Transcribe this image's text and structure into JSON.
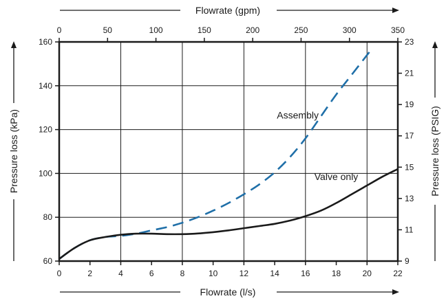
{
  "chart_data": {
    "type": "line",
    "x_bottom": {
      "label": "Flowrate (l/s)",
      "range": [
        0,
        22
      ],
      "ticks": [
        "0",
        "2",
        "4",
        "6",
        "8",
        "10",
        "12",
        "14",
        "16",
        "18",
        "20",
        "22"
      ]
    },
    "x_top": {
      "label": "Flowrate (gpm)",
      "range": [
        0,
        350
      ],
      "ticks": [
        "0",
        "50",
        "100",
        "150",
        "200",
        "250",
        "300",
        "350"
      ]
    },
    "y_left": {
      "label": "Pressure loss (kPa)",
      "range": [
        60,
        160
      ],
      "ticks": [
        "60",
        "80",
        "100",
        "120",
        "140",
        "160"
      ]
    },
    "y_right": {
      "label": "Pressure loss (PSIG)",
      "range": [
        9,
        23
      ],
      "ticks": [
        "9",
        "11",
        "13",
        "15",
        "17",
        "19",
        "21",
        "23"
      ]
    },
    "grid": true,
    "series": [
      {
        "name": "Assembly",
        "style": "dashed",
        "color": "#1f6fa8",
        "x": [
          0,
          1,
          2,
          3,
          4,
          5,
          6,
          7,
          8,
          9,
          10,
          11,
          12,
          13,
          14,
          15,
          16,
          17,
          18,
          19,
          20,
          20.4
        ],
        "y": [
          61,
          66,
          69.5,
          71,
          71.5,
          72.5,
          74,
          75.5,
          77.5,
          80,
          83,
          86.5,
          90.5,
          95,
          100.5,
          107.5,
          116,
          126,
          136,
          145,
          154,
          157.5
        ]
      },
      {
        "name": "Valve only",
        "style": "solid",
        "color": "#1a1a1a",
        "x": [
          0,
          1,
          2,
          3,
          4,
          5,
          6,
          7,
          8,
          9,
          10,
          11,
          12,
          13,
          14,
          15,
          16,
          17,
          18,
          19,
          20,
          21,
          22
        ],
        "y": [
          61,
          66,
          69.5,
          71,
          72,
          72.5,
          72.5,
          72.3,
          72.3,
          72.6,
          73.2,
          74,
          75,
          76,
          77,
          78.5,
          80.5,
          83,
          86.5,
          90.5,
          94.5,
          98.5,
          102
        ]
      }
    ],
    "annotations": [
      {
        "text": "Assembly",
        "x": 15.5,
        "y": 125
      },
      {
        "text": "Valve only",
        "x": 18,
        "y": 97
      }
    ]
  }
}
